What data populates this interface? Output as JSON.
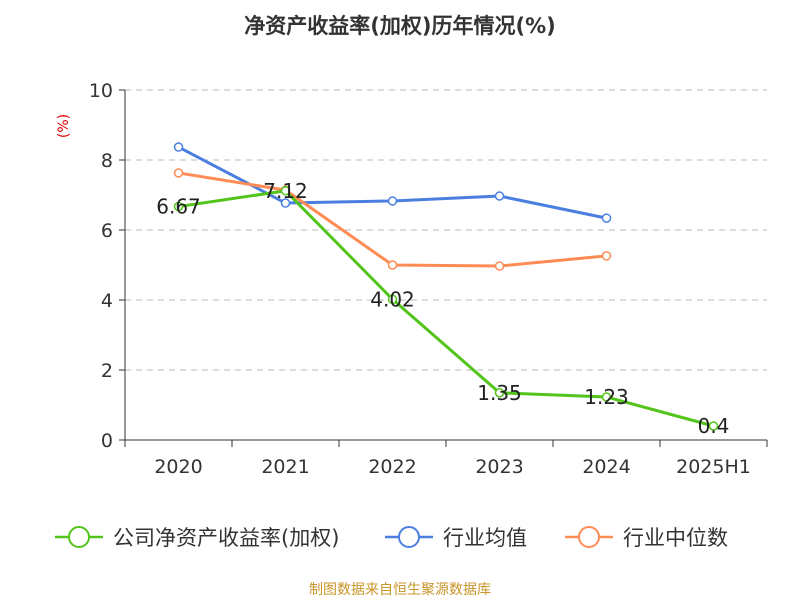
{
  "chart_data": {
    "type": "line",
    "title": "净资产收益率(加权)历年情况(%)",
    "ylabel": "(%)",
    "categories": [
      "2020",
      "2021",
      "2022",
      "2023",
      "2024",
      "2025H1"
    ],
    "ylim": [
      0,
      10
    ],
    "yticks": [
      "0",
      "2",
      "4",
      "6",
      "8",
      "10"
    ],
    "grid": true,
    "legend_position": "bottom",
    "series": [
      {
        "name": "公司净资产收益率(加权)",
        "color": "#52c41a",
        "values": [
          6.67,
          7.12,
          4.02,
          1.35,
          1.23,
          0.4
        ],
        "labels": [
          "6.67",
          "7.12",
          "4.02",
          "1.35",
          "1.23",
          "0.4"
        ]
      },
      {
        "name": "行业均值",
        "color": "#4a7fe0",
        "values": [
          8.37,
          6.77,
          6.83,
          6.97,
          6.34,
          null
        ]
      },
      {
        "name": "行业中位数",
        "color": "#ff8c55",
        "values": [
          7.63,
          7.14,
          5.0,
          4.97,
          5.26,
          null
        ]
      }
    ]
  },
  "source": "制图数据来自恒生聚源数据库"
}
